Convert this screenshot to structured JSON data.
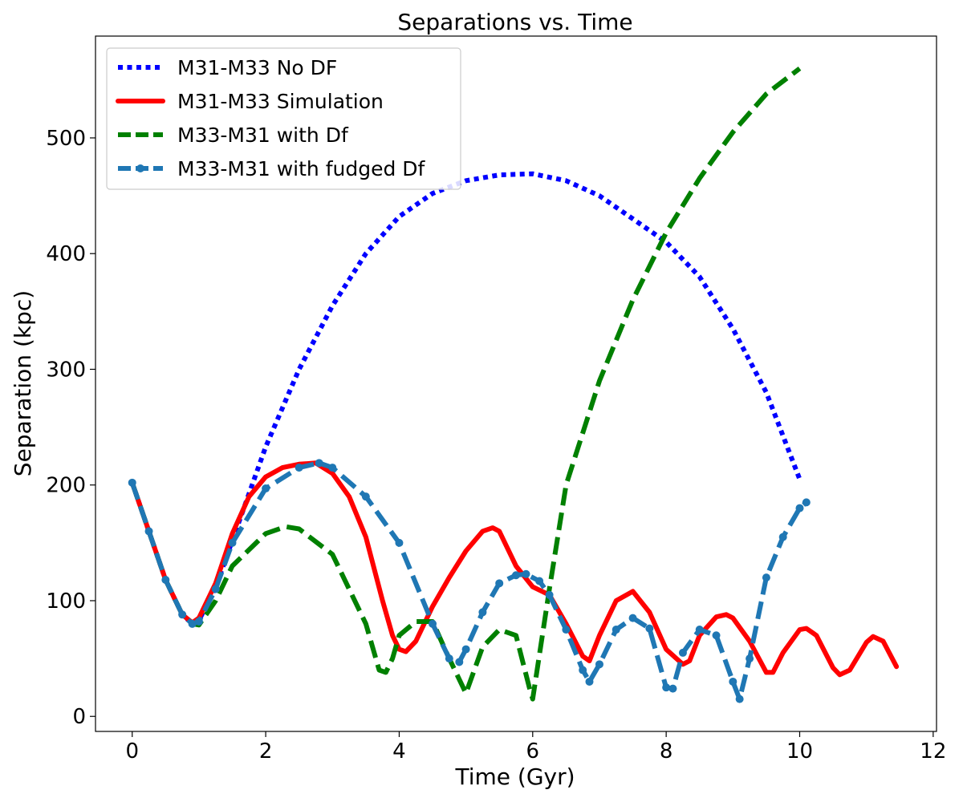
{
  "chart_data": {
    "type": "line",
    "title": "Separations vs. Time",
    "xlabel": "Time (Gyr)",
    "ylabel": "Separation (kpc)",
    "xlim": [
      -0.55,
      12.05
    ],
    "ylim": [
      -13,
      588
    ],
    "x_ticks": [
      0,
      2,
      4,
      6,
      8,
      10,
      12
    ],
    "y_ticks": [
      0,
      100,
      200,
      300,
      400,
      500
    ],
    "grid": false,
    "legend_position": "upper-left",
    "series": [
      {
        "name": "M31-M33 No DF",
        "color": "#0000ff",
        "style": "dotted",
        "x": [
          0,
          0.25,
          0.5,
          0.75,
          0.9,
          1.0,
          1.25,
          1.5,
          2.0,
          2.5,
          3.0,
          3.5,
          4.0,
          4.5,
          5.0,
          5.5,
          6.0,
          6.5,
          7.0,
          7.5,
          8.0,
          8.5,
          9.0,
          9.5,
          10.0
        ],
        "y": [
          202,
          160,
          118,
          88,
          80,
          83,
          112,
          152,
          233,
          300,
          355,
          400,
          432,
          452,
          463,
          468,
          469,
          463,
          450,
          430,
          410,
          380,
          335,
          280,
          205
        ]
      },
      {
        "name": "M31-M33 Simulation",
        "color": "#ff0000",
        "style": "solid",
        "x": [
          0,
          0.25,
          0.5,
          0.75,
          0.9,
          1.0,
          1.25,
          1.5,
          1.75,
          2.0,
          2.25,
          2.5,
          2.75,
          3.0,
          3.25,
          3.5,
          3.75,
          3.9,
          4.0,
          4.1,
          4.25,
          4.5,
          4.75,
          5.0,
          5.25,
          5.4,
          5.5,
          5.75,
          6.0,
          6.25,
          6.5,
          6.75,
          6.85,
          7.0,
          7.25,
          7.5,
          7.75,
          8.0,
          8.25,
          8.35,
          8.5,
          8.75,
          8.9,
          9.0,
          9.25,
          9.5,
          9.6,
          9.75,
          10.0,
          10.1,
          10.25,
          10.5,
          10.6,
          10.75,
          11.0,
          11.1,
          11.25,
          11.45
        ],
        "y": [
          202,
          160,
          118,
          88,
          81,
          85,
          115,
          158,
          190,
          207,
          215,
          218,
          219,
          210,
          190,
          155,
          100,
          70,
          58,
          56,
          65,
          95,
          120,
          143,
          160,
          163,
          160,
          130,
          112,
          105,
          80,
          52,
          48,
          70,
          100,
          108,
          90,
          58,
          45,
          48,
          70,
          86,
          88,
          85,
          65,
          38,
          38,
          55,
          75,
          76,
          70,
          42,
          36,
          40,
          64,
          69,
          65,
          43
        ]
      },
      {
        "name": "M33-M31 with Df",
        "color": "#008000",
        "style": "dashed",
        "x": [
          0,
          0.25,
          0.5,
          0.75,
          0.9,
          1.0,
          1.25,
          1.5,
          2.0,
          2.3,
          2.5,
          3.0,
          3.5,
          3.7,
          3.8,
          3.9,
          4.0,
          4.25,
          4.5,
          4.75,
          5.0,
          5.25,
          5.5,
          5.75,
          5.95,
          6.0,
          6.25,
          6.5,
          7.0,
          7.5,
          8.0,
          8.5,
          9.0,
          9.5,
          10.0
        ],
        "y": [
          202,
          160,
          118,
          88,
          80,
          79,
          100,
          130,
          158,
          164,
          162,
          140,
          80,
          40,
          38,
          50,
          70,
          82,
          82,
          50,
          20,
          60,
          75,
          70,
          25,
          15,
          110,
          200,
          290,
          360,
          418,
          465,
          505,
          538,
          560
        ]
      },
      {
        "name": "M33-M31 with fudged Df",
        "color": "#1f77b4",
        "style": "dashed-marker",
        "x": [
          0,
          0.25,
          0.5,
          0.75,
          0.9,
          1.0,
          1.25,
          1.5,
          2.0,
          2.5,
          2.8,
          3.0,
          3.5,
          4.0,
          4.5,
          4.75,
          4.9,
          5.0,
          5.25,
          5.5,
          5.75,
          5.9,
          6.1,
          6.25,
          6.5,
          6.75,
          6.85,
          7.0,
          7.25,
          7.5,
          7.75,
          8.0,
          8.1,
          8.25,
          8.5,
          8.75,
          9.0,
          9.1,
          9.25,
          9.5,
          9.75,
          10.0,
          10.1
        ],
        "y": [
          202,
          160,
          118,
          88,
          80,
          82,
          110,
          150,
          197,
          215,
          219,
          215,
          190,
          150,
          80,
          50,
          47,
          58,
          90,
          115,
          122,
          123,
          117,
          105,
          75,
          40,
          30,
          45,
          75,
          85,
          76,
          25,
          24,
          55,
          75,
          70,
          30,
          15,
          50,
          120,
          155,
          180,
          185
        ]
      }
    ]
  }
}
